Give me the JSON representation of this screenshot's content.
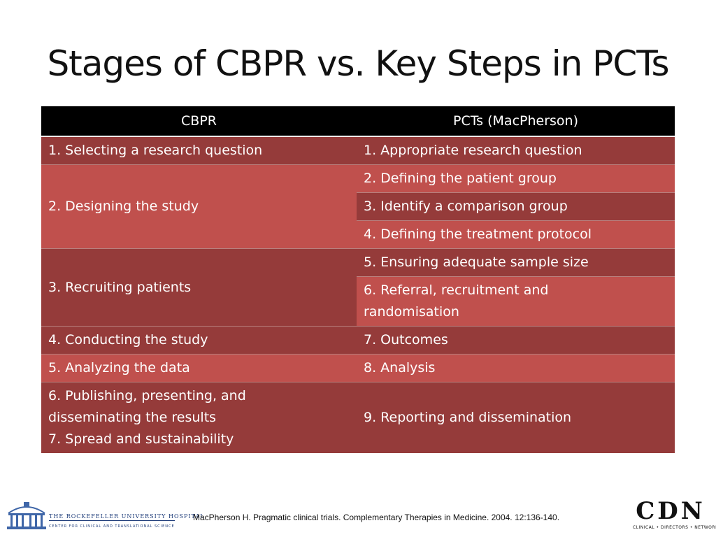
{
  "title": "Stages of CBPR vs. Key Steps in PCTs",
  "table": {
    "headers": [
      "CBPR",
      "PCTs (MacPherson)"
    ],
    "cbpr": {
      "r1": "1. Selecting a research question",
      "r2": "2. Designing the study",
      "r3": "3. Recruiting patients",
      "r4": "4. Conducting the study",
      "r5": "5. Analyzing the data",
      "r6a": "6. Publishing, presenting, and",
      "r6b": "disseminating the results",
      "r6c": "7. Spread and sustainability"
    },
    "pct": {
      "s1": "1. Appropriate research question",
      "s2": "2. Defining the patient group",
      "s3": "3. Identify a comparison group",
      "s4": "4. Defining the treatment protocol",
      "s5": "5. Ensuring adequate sample size",
      "s6a": "6. Referral, recruitment and",
      "s6b": "randomisation",
      "s7": "7. Outcomes",
      "s8": "8. Analysis",
      "s9": "9. Reporting and dissemination"
    },
    "colors": {
      "header": "#000000",
      "dark": "#953b3a",
      "light": "#c0504d"
    }
  },
  "footer": {
    "citation": "MacPherson H. Pragmatic clinical trials. Complementary Therapies in Medicine. 2004. 12:136-140.",
    "left_logo": {
      "name": "THE ROCKEFELLER UNIVERSITY HOSPITAL",
      "sub": "CENTER FOR CLINICAL AND TRANSLATIONAL SCIENCE",
      "icon": "rockefeller-building-icon"
    },
    "right_logo": {
      "letters": "CDN",
      "sub": "CLINICAL • DIRECTORS • NETWORK"
    }
  }
}
